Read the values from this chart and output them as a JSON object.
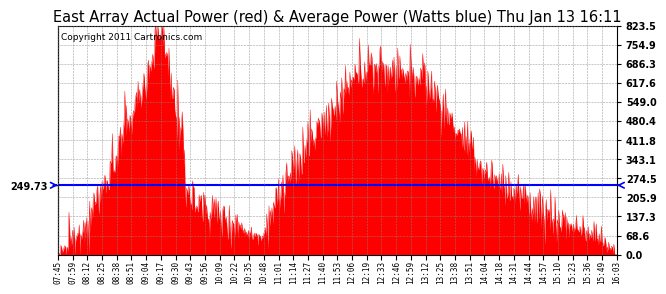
{
  "title": "East Array Actual Power (red) & Average Power (Watts blue) Thu Jan 13 16:11",
  "copyright": "Copyright 2011 Cartronics.com",
  "avg_line_value": 249.73,
  "avg_label": "249.73",
  "ymin": 0.0,
  "ymax": 823.5,
  "yticks": [
    0.0,
    68.6,
    137.3,
    205.9,
    274.5,
    343.1,
    411.8,
    480.4,
    549.0,
    617.6,
    686.3,
    754.9,
    823.5
  ],
  "fill_color": "#FF0000",
  "line_color": "#0000FF",
  "bg_color": "#FFFFFF",
  "grid_color": "#888888",
  "title_fontsize": 10.5,
  "copyright_fontsize": 6.5,
  "tick_labels": [
    "07:45",
    "07:59",
    "08:12",
    "08:25",
    "08:38",
    "08:51",
    "09:04",
    "09:17",
    "09:30",
    "09:43",
    "09:56",
    "10:09",
    "10:22",
    "10:35",
    "10:48",
    "11:01",
    "11:14",
    "11:27",
    "11:40",
    "11:53",
    "12:06",
    "12:19",
    "12:33",
    "12:46",
    "12:59",
    "13:12",
    "13:25",
    "13:38",
    "13:51",
    "14:04",
    "14:18",
    "14:31",
    "14:44",
    "14:57",
    "15:10",
    "15:23",
    "15:36",
    "15:49",
    "16:03"
  ]
}
